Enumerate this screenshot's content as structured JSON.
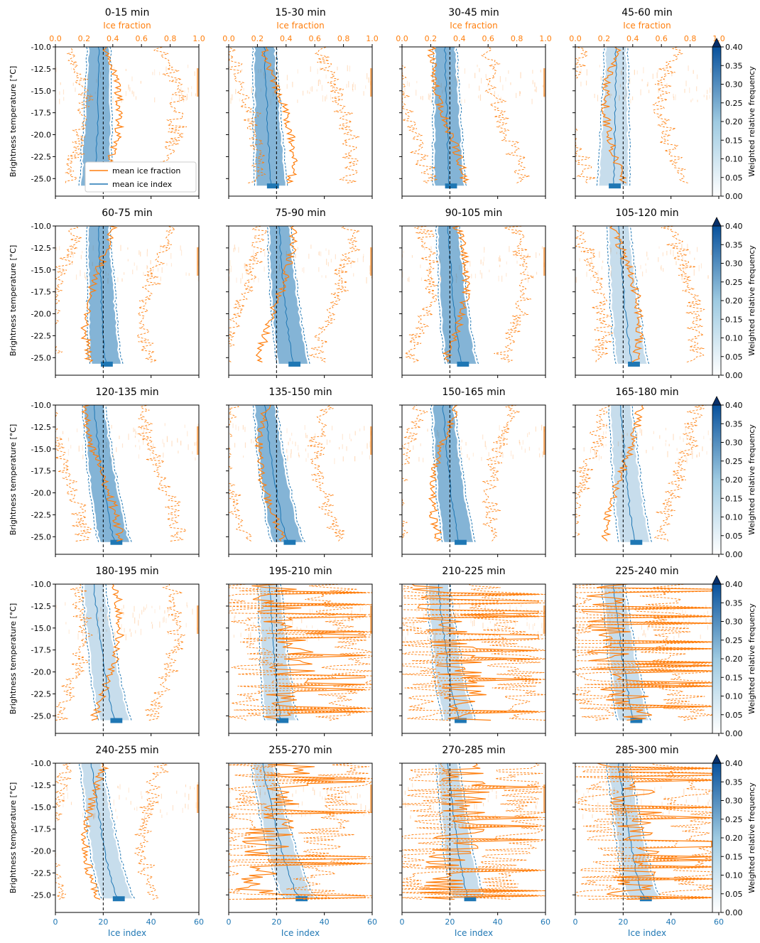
{
  "figure": {
    "axis_labels": {
      "top_x": "Ice fraction",
      "bottom_x": "Ice index",
      "left_y": "Brightness temperature [°C]",
      "colorbar": "Weighted relative frequency"
    },
    "legend": [
      "mean ice fraction",
      "mean ice index"
    ],
    "colors": {
      "ice_fraction": "#ff7f0e",
      "ice_index": "#1f77b4",
      "axes": "#000000",
      "background": "#ffffff"
    }
  },
  "chart_data": {
    "type": "heatmap",
    "panels": [
      {
        "title": "0-15 min"
      },
      {
        "title": "15-30 min"
      },
      {
        "title": "30-45 min"
      },
      {
        "title": "45-60 min"
      },
      {
        "title": "60-75 min"
      },
      {
        "title": "75-90 min"
      },
      {
        "title": "90-105 min"
      },
      {
        "title": "105-120 min"
      },
      {
        "title": "120-135 min"
      },
      {
        "title": "135-150 min"
      },
      {
        "title": "150-165 min"
      },
      {
        "title": "165-180 min"
      },
      {
        "title": "180-195 min"
      },
      {
        "title": "195-210 min"
      },
      {
        "title": "210-225 min"
      },
      {
        "title": "225-240 min"
      },
      {
        "title": "240-255 min"
      },
      {
        "title": "255-270 min"
      },
      {
        "title": "270-285 min"
      },
      {
        "title": "285-300 min"
      }
    ],
    "x_bottom": {
      "label": "Ice index",
      "range": [
        0,
        60
      ],
      "ticks": [
        "0",
        "20",
        "40",
        "60"
      ]
    },
    "x_top": {
      "label": "Ice fraction",
      "range": [
        0.0,
        1.0
      ],
      "ticks": [
        "0.0",
        "0.2",
        "0.4",
        "0.6",
        "0.8",
        "1.0"
      ]
    },
    "y": {
      "label": "Brightness temperature [°C]",
      "range": [
        -10.0,
        -27.0
      ],
      "ticks": [
        "-25.0",
        "-22.5",
        "-20.0",
        "-17.5",
        "-15.0",
        "-12.5",
        "-10.0"
      ]
    },
    "colorbar": {
      "label": "Weighted relative frequency",
      "range": [
        0.0,
        0.4
      ],
      "extend": "max",
      "ticks": [
        "0.00",
        "0.05",
        "0.10",
        "0.15",
        "0.20",
        "0.25",
        "0.30",
        "0.35",
        "0.40"
      ]
    },
    "reference_line_ice_index": 20,
    "mean_ice_index_by_panel": [
      17,
      18,
      20,
      16,
      21,
      27,
      25,
      24,
      25,
      25,
      24,
      25,
      25,
      22,
      24,
      25,
      26,
      30,
      28,
      29
    ],
    "mean_ice_index_at_minus10": [
      18,
      15,
      18,
      17,
      18,
      21,
      19,
      18,
      16,
      15,
      17,
      19,
      16,
      17,
      15,
      16,
      15,
      14,
      19,
      18
    ]
  }
}
